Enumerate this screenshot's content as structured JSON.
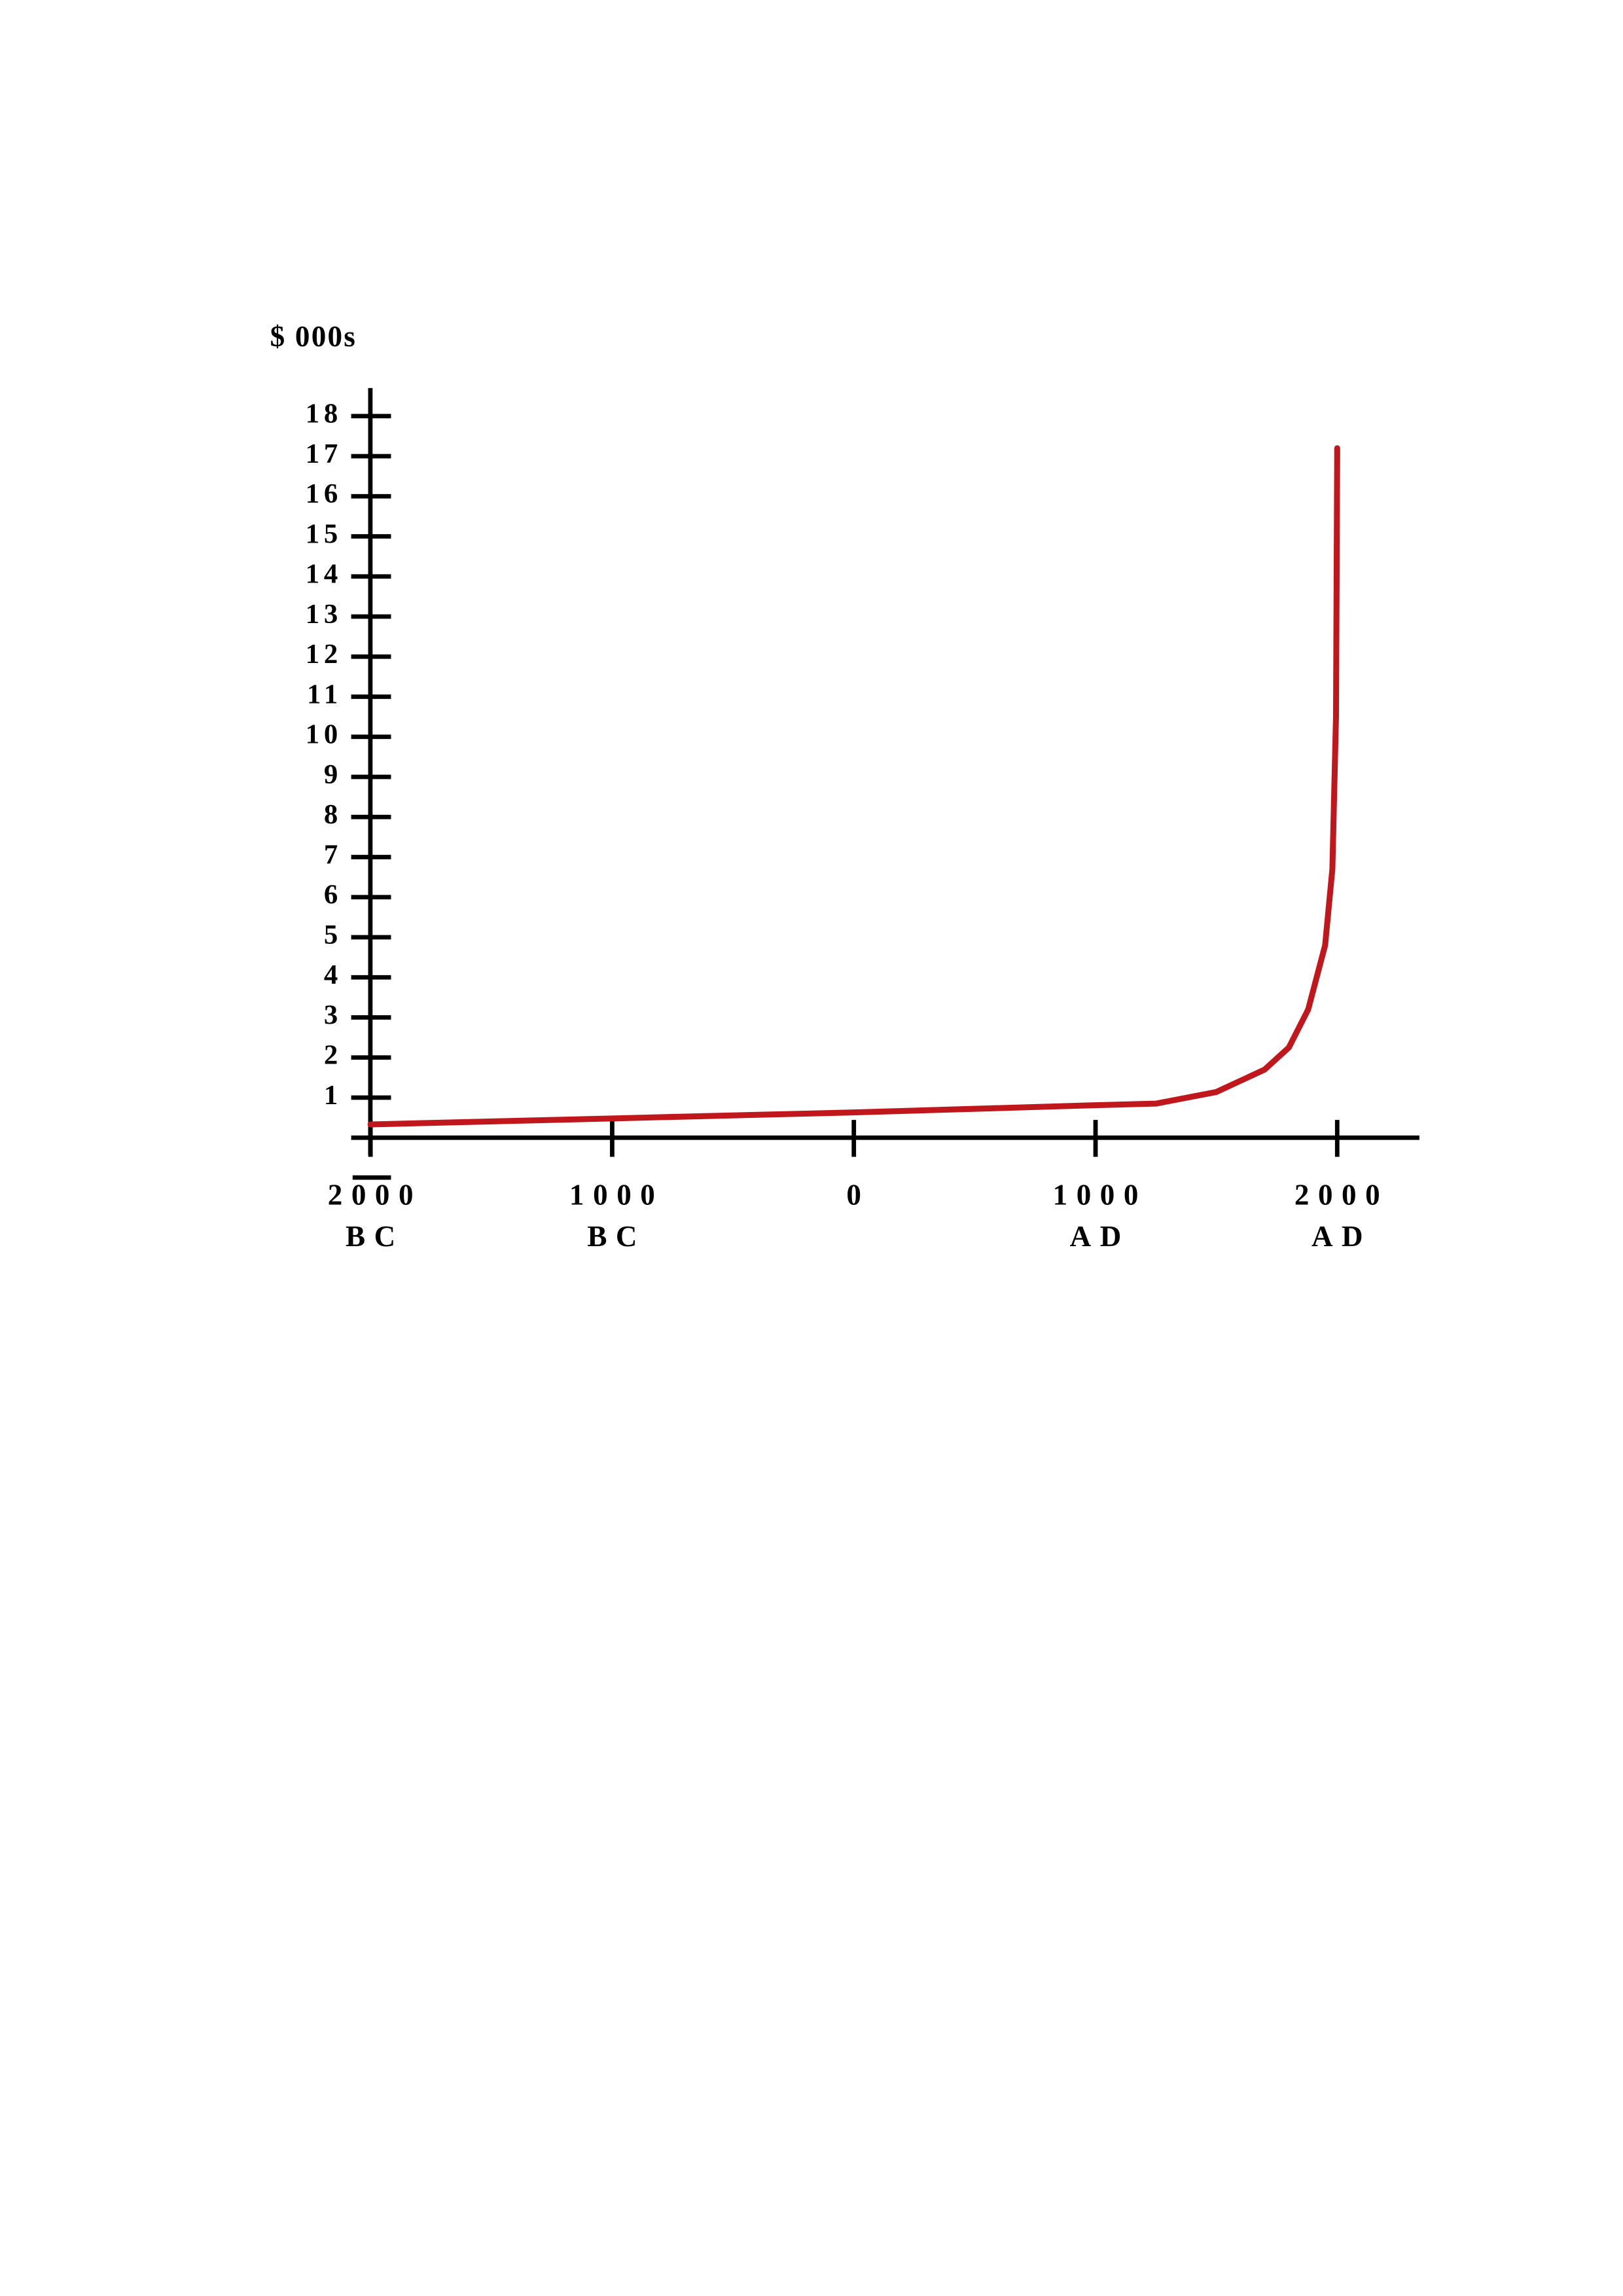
{
  "chart_data": {
    "type": "line",
    "y_label": "$ 000s",
    "xlim": [
      -2080,
      2340
    ],
    "ylim": [
      0,
      18.7
    ],
    "xticks": [
      {
        "value": -2000,
        "label": "2000 BC"
      },
      {
        "value": -1000,
        "label": "1000 BC"
      },
      0,
      {
        "value": 1000,
        "label": "1000 AD"
      },
      {
        "value": 2000,
        "label": "2000 AD"
      }
    ],
    "yticks": [
      1,
      2,
      3,
      4,
      5,
      6,
      7,
      8,
      9,
      10,
      11,
      12,
      13,
      14,
      15,
      16,
      17,
      18
    ],
    "color": "#c0171c",
    "x": [
      -2000,
      -1000,
      0,
      1000,
      1250,
      1500,
      1700,
      1800,
      1880,
      1950,
      1980,
      1995,
      2000
    ],
    "values": [
      0.33,
      0.48,
      0.63,
      0.81,
      0.85,
      1.14,
      1.7,
      2.25,
      3.2,
      4.8,
      6.7,
      10.5,
      17.2
    ]
  }
}
